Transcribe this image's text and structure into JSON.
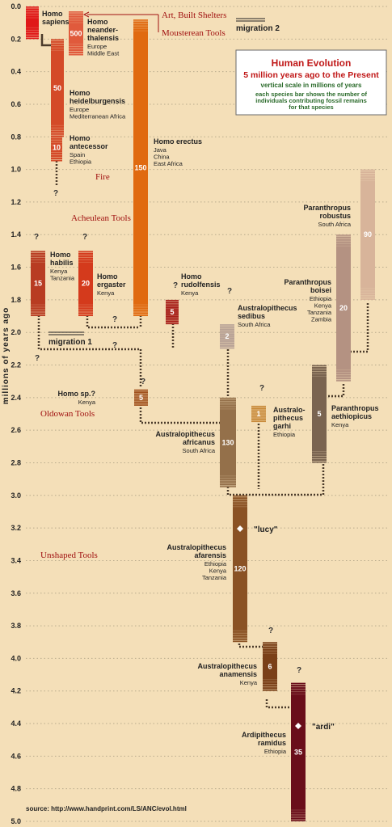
{
  "chart_data": {
    "type": "bar",
    "title": "Human Evolution",
    "subtitle": "5 million years ago to the Present",
    "notes": [
      "vertical scale in millions of years",
      "each species bar shows the number of",
      "individuals contributing fossil remains",
      "for that species"
    ],
    "ylabel": "millions of years ago",
    "ylim": [
      0,
      5
    ],
    "y_ticks": [
      "0.0",
      "0.2",
      "0.4",
      "0.6",
      "0.8",
      "1.0",
      "1.2",
      "1.4",
      "1.6",
      "1.8",
      "2.0",
      "2.2",
      "2.4",
      "2.6",
      "2.8",
      "3.0",
      "3.2",
      "3.4",
      "3.6",
      "3.8",
      "4.0",
      "4.2",
      "4.4",
      "4.6",
      "4.8",
      "5.0"
    ],
    "grid": true,
    "source": "source: http://www.handprint.com/LS/ANC/evol.html",
    "species": [
      {
        "name_lines": [
          "Homo",
          "sapiens"
        ],
        "locations": [],
        "count": "",
        "start": 0.0,
        "end": 0.2,
        "color": "#e01818"
      },
      {
        "name_lines": [
          "Homo",
          "neander-",
          "thalensis"
        ],
        "locations": [
          "Europe",
          "Middle East"
        ],
        "count": "500",
        "start": 0.03,
        "end": 0.3,
        "color": "#e05a3c"
      },
      {
        "name_lines": [
          "Homo",
          "heidelburgensis"
        ],
        "locations": [
          "Europe",
          "Mediterranean Africa"
        ],
        "count": "50",
        "start": 0.2,
        "end": 0.8,
        "color": "#d44a28"
      },
      {
        "name_lines": [
          "Homo",
          "antecessor"
        ],
        "locations": [
          "Spain",
          "Ethiopia"
        ],
        "count": "10",
        "start": 0.78,
        "end": 0.95,
        "color": "#d44a28"
      },
      {
        "name_lines": [
          "Homo erectus"
        ],
        "locations": [
          "Java",
          "China",
          "East Africa"
        ],
        "count": "150",
        "start": 0.08,
        "end": 1.9,
        "color": "#e06a10"
      },
      {
        "name_lines": [
          "Homo",
          "habilis"
        ],
        "locations": [
          "Kenya",
          "Tanzania"
        ],
        "count": "15",
        "start": 1.5,
        "end": 1.9,
        "color": "#b83c22"
      },
      {
        "name_lines": [
          "Homo",
          "ergaster"
        ],
        "locations": [
          "Kenya"
        ],
        "count": "20",
        "start": 1.5,
        "end": 1.9,
        "color": "#d43a1c"
      },
      {
        "name_lines": [
          "Homo",
          "rudolfensis"
        ],
        "locations": [
          "Kenya"
        ],
        "count": "5",
        "start": 1.8,
        "end": 1.95,
        "color": "#a8201a"
      },
      {
        "name_lines": [
          "Homo sp.?"
        ],
        "locations": [
          "Kenya"
        ],
        "count": "5",
        "start": 2.35,
        "end": 2.45,
        "color": "#a0501c"
      },
      {
        "name_lines": [
          "Australopithecus",
          "sedibus"
        ],
        "locations": [
          "South Africa"
        ],
        "count": "2",
        "start": 1.95,
        "end": 2.1,
        "color": "#b8a296"
      },
      {
        "name_lines": [
          "Australo-",
          "pithecus",
          "garhi"
        ],
        "locations": [
          "Ethiopia"
        ],
        "count": "1",
        "start": 2.45,
        "end": 2.55,
        "color": "#c88a3a"
      },
      {
        "name_lines": [
          "Australopithecus",
          "africanus"
        ],
        "locations": [
          "South Africa"
        ],
        "count": "130",
        "start": 2.4,
        "end": 2.95,
        "color": "#94704a"
      },
      {
        "name_lines": [
          "Paranthropus",
          "robustus"
        ],
        "locations": [
          "South Africa"
        ],
        "count": "90",
        "start": 1.0,
        "end": 1.8,
        "color": "#d8b49a"
      },
      {
        "name_lines": [
          "Paranthropus",
          "boisei"
        ],
        "locations": [
          "Ethiopia",
          "Kenya",
          "Tanzania",
          "Zambia"
        ],
        "count": "20",
        "start": 1.4,
        "end": 2.3,
        "color": "#b49282"
      },
      {
        "name_lines": [
          "Paranthropus",
          "aethiopicus"
        ],
        "locations": [
          "Kenya"
        ],
        "count": "5",
        "start": 2.2,
        "end": 2.8,
        "color": "#7a6450"
      },
      {
        "name_lines": [
          "Australopithecus",
          "afarensis"
        ],
        "locations": [
          "Ethiopia",
          "Kenya",
          "Tanzania"
        ],
        "count": "120",
        "start": 3.0,
        "end": 3.9,
        "color": "#8a5224"
      },
      {
        "name_lines": [
          "Australopithecus",
          "anamensis"
        ],
        "locations": [
          "Kenya"
        ],
        "count": "6",
        "start": 3.9,
        "end": 4.2,
        "color": "#7a4018"
      },
      {
        "name_lines": [
          "Ardipithecus",
          "ramidus"
        ],
        "locations": [
          "Ethiopia"
        ],
        "count": "35",
        "start": 4.15,
        "end": 5.0,
        "color": "#6a0e1a"
      }
    ],
    "tools": [
      "Art, Built Shelters",
      "Mousterean Tools",
      "Fire",
      "Acheulean Tools",
      "Oldowan Tools",
      "Unshaped Tools"
    ],
    "migrations": [
      "migration 2",
      "migration 1"
    ],
    "nicknames": [
      "\"lucy\"",
      "\"ardi\""
    ]
  }
}
